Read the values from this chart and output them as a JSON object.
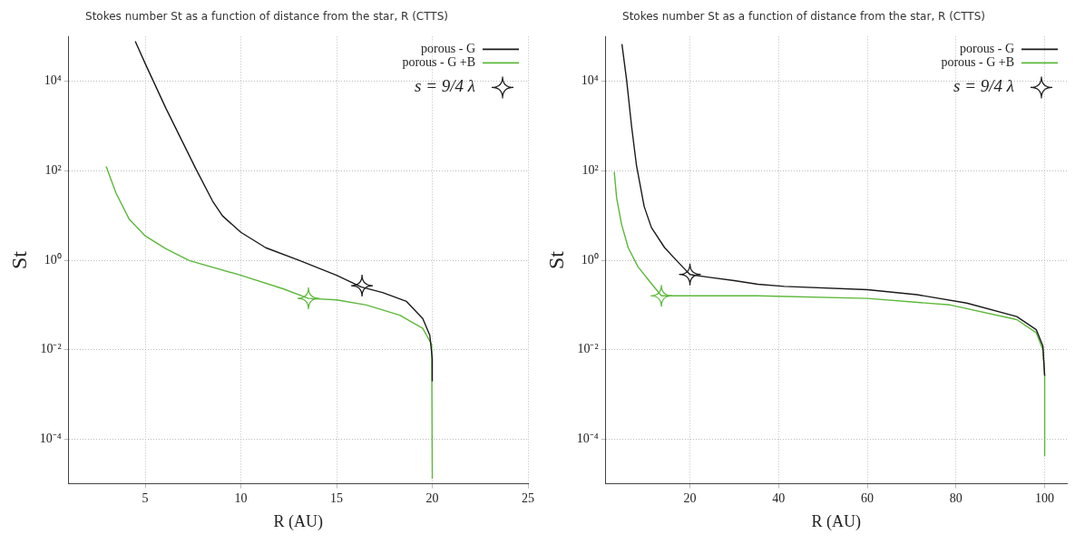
{
  "chart_data": [
    {
      "type": "line",
      "title": "Stokes number St as a function of distance from the star, R (CTTS)",
      "xlabel": "R (AU)",
      "ylabel": "St",
      "log": "y",
      "grid": true,
      "legend": "top right",
      "line_style": "solid",
      "xlim": [
        1,
        25
      ],
      "xticks": [
        5,
        10,
        15,
        20,
        25
      ],
      "ylim": [
        1e-05,
        100000.0
      ],
      "yticks": [
        {
          "value": 0.0001,
          "label": "10⁻⁴"
        },
        {
          "value": 0.01,
          "label": "10⁻²"
        },
        {
          "value": 1,
          "label": "10⁰"
        },
        {
          "value": 100,
          "label": "10²"
        },
        {
          "value": 10000,
          "label": "10⁴"
        }
      ],
      "series": [
        {
          "name": "porous - G",
          "color": "#1a1a1a",
          "x": [
            4.48,
            5,
            6.08,
            7.65,
            8.52,
            9.04,
            10,
            11.3,
            13.07,
            15,
            16.3,
            17.4,
            18.65,
            19.5,
            19.87,
            20,
            20
          ],
          "values": [
            79000,
            25000,
            2500,
            110,
            21,
            9.8,
            4.2,
            1.9,
            0.98,
            0.46,
            0.25,
            0.19,
            0.12,
            0.05,
            0.021,
            0.0063,
            0.002
          ]
        },
        {
          "name": "porous - G +B",
          "color": "#5cb83a",
          "x": [
            2.96,
            3.47,
            4.16,
            5,
            6.08,
            7.3,
            10,
            12.2,
            13.53,
            15,
            16.55,
            18.3,
            19.5,
            19.97,
            20
          ],
          "values": [
            126,
            32,
            8.3,
            3.5,
            1.8,
            0.98,
            0.46,
            0.23,
            0.14,
            0.13,
            0.1,
            0.059,
            0.03,
            0.013,
            1.3e-05
          ]
        },
        {
          "name": "s = 9/4 λ",
          "type": "scatter",
          "marker": "star",
          "colors": [
            "#1a1a1a",
            "#5cb83a"
          ],
          "x": [
            16.33,
            13.53
          ],
          "values": [
            0.27,
            0.14
          ]
        }
      ]
    },
    {
      "type": "line",
      "title": "Stokes number St as a function of distance from the star, R (CTTS)",
      "xlabel": "R (AU)",
      "ylabel": "St",
      "log": "y",
      "grid": true,
      "legend": "top right",
      "line_style": "solid",
      "xlim": [
        1,
        105
      ],
      "xticks": [
        20,
        40,
        60,
        80,
        100
      ],
      "ylim": [
        1e-05,
        100000.0
      ],
      "yticks": [
        {
          "value": 0.0001,
          "label": "10⁻⁴"
        },
        {
          "value": 0.01,
          "label": "10⁻²"
        },
        {
          "value": 1,
          "label": "10⁰"
        },
        {
          "value": 100,
          "label": "10²"
        },
        {
          "value": 10000,
          "label": "10⁴"
        }
      ],
      "series": [
        {
          "name": "porous - G",
          "color": "#1a1a1a",
          "x": [
            4.66,
            5.7,
            6.83,
            7.95,
            9.67,
            11.3,
            14.3,
            18.05,
            20,
            24,
            30,
            35.3,
            41.3,
            60,
            71.2,
            82.4,
            93.7,
            98.1,
            99.6,
            100
          ],
          "values": [
            68000,
            11000,
            1000,
            130,
            16,
            5.4,
            1.9,
            0.76,
            0.48,
            0.42,
            0.35,
            0.29,
            0.26,
            0.22,
            0.17,
            0.11,
            0.055,
            0.028,
            0.012,
            0.0026
          ]
        },
        {
          "name": "porous - G +B",
          "color": "#5cb83a",
          "x": [
            2.93,
            3.46,
            4.58,
            6.08,
            8.3,
            11.3,
            13.56,
            15.8,
            35.3,
            60,
            78.7,
            93.7,
            98.1,
            99.6,
            100,
            100
          ],
          "values": [
            95,
            25,
            6.3,
            1.9,
            0.71,
            0.3,
            0.16,
            0.16,
            0.16,
            0.14,
            0.1,
            0.047,
            0.024,
            0.01,
            0.0026,
            4.2e-05
          ]
        },
        {
          "name": "s = 9/4 λ",
          "type": "scatter",
          "marker": "star",
          "colors": [
            "#1a1a1a",
            "#5cb83a"
          ],
          "x": [
            20,
            13.56
          ],
          "values": [
            0.48,
            0.16
          ]
        }
      ]
    }
  ]
}
